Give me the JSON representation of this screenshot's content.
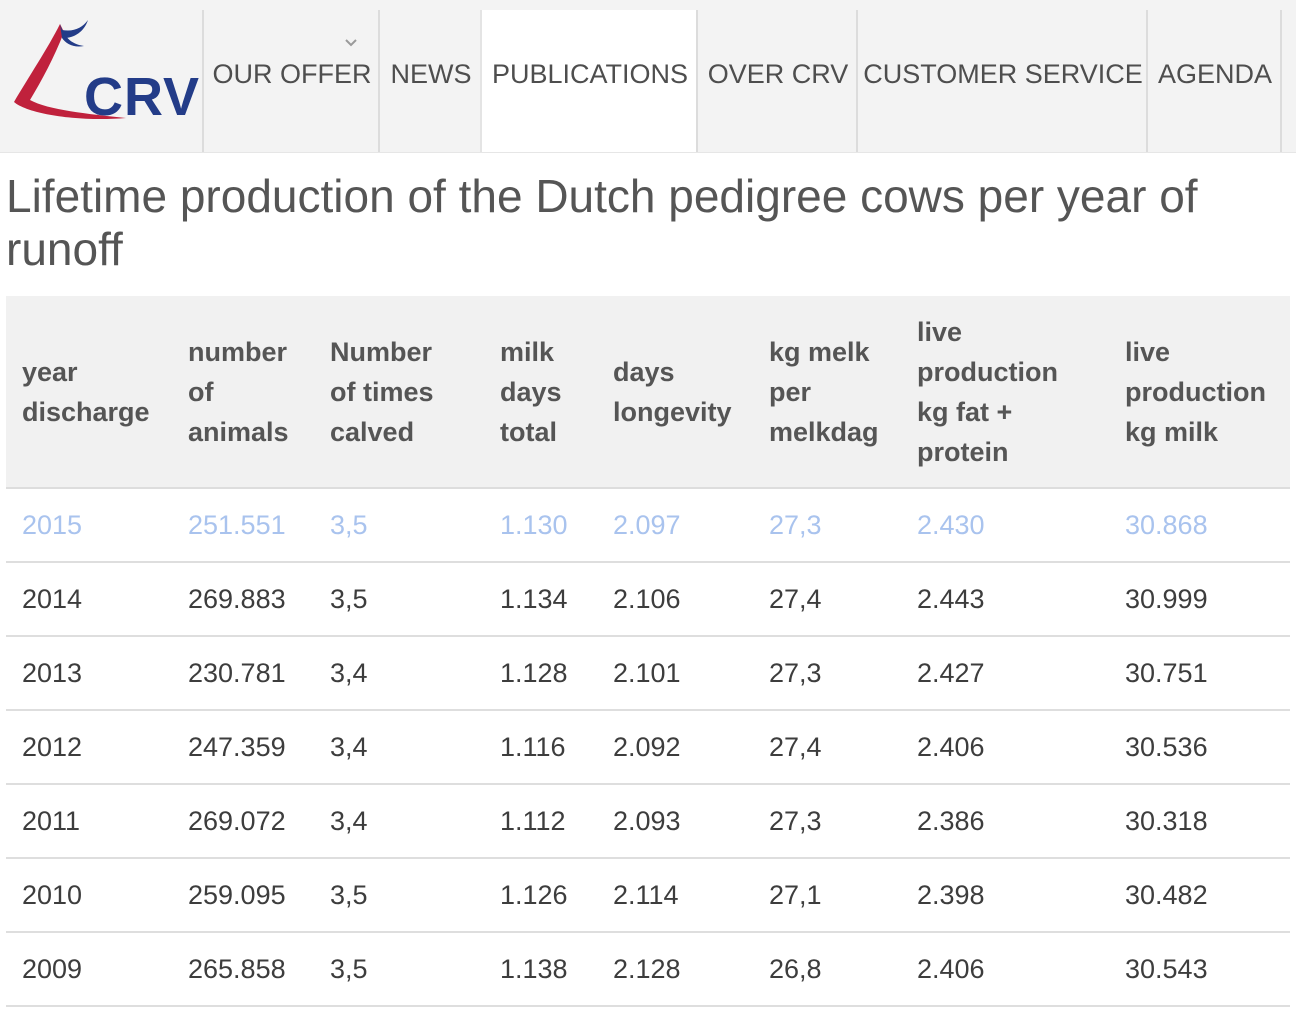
{
  "logo": {
    "text": "CRV",
    "brand_blue": "#233c88",
    "brand_red": "#c0213c"
  },
  "nav": {
    "items": [
      {
        "label": "OUR OFFER",
        "has_dropdown": true
      },
      {
        "label": "NEWS"
      },
      {
        "label": "PUBLICATIONS",
        "active": true
      },
      {
        "label": "OVER CRV"
      },
      {
        "label": "CUSTOMER SERVICE"
      },
      {
        "label": "AGENDA"
      }
    ]
  },
  "page": {
    "title": "Lifetime production of the Dutch pedigree cows per year of runoff"
  },
  "table": {
    "headers": [
      "year discharge",
      "number of animals",
      "Number of times calved",
      "milk days total",
      "days longevity",
      "kg melk per melkdag",
      "live production kg fat + protein",
      "live production kg milk"
    ],
    "rows": [
      [
        "2015",
        "251.551",
        "3,5",
        "1.130",
        "2.097",
        "27,3",
        "2.430",
        "30.868"
      ],
      [
        "2014",
        "269.883",
        "3,5",
        "1.134",
        "2.106",
        "27,4",
        "2.443",
        "30.999"
      ],
      [
        "2013",
        "230.781",
        "3,4",
        "1.128",
        "2.101",
        "27,3",
        "2.427",
        "30.751"
      ],
      [
        "2012",
        "247.359",
        "3,4",
        "1.116",
        "2.092",
        "27,4",
        "2.406",
        "30.536"
      ],
      [
        "2011",
        "269.072",
        "3,4",
        "1.112",
        "2.093",
        "27,3",
        "2.386",
        "30.318"
      ],
      [
        "2010",
        "259.095",
        "3,5",
        "1.126",
        "2.114",
        "27,1",
        "2.398",
        "30.482"
      ],
      [
        "2009",
        "265.858",
        "3,5",
        "1.138",
        "2.128",
        "26,8",
        "2.406",
        "30.543"
      ]
    ],
    "highlight_color": "#a9c3ee"
  }
}
